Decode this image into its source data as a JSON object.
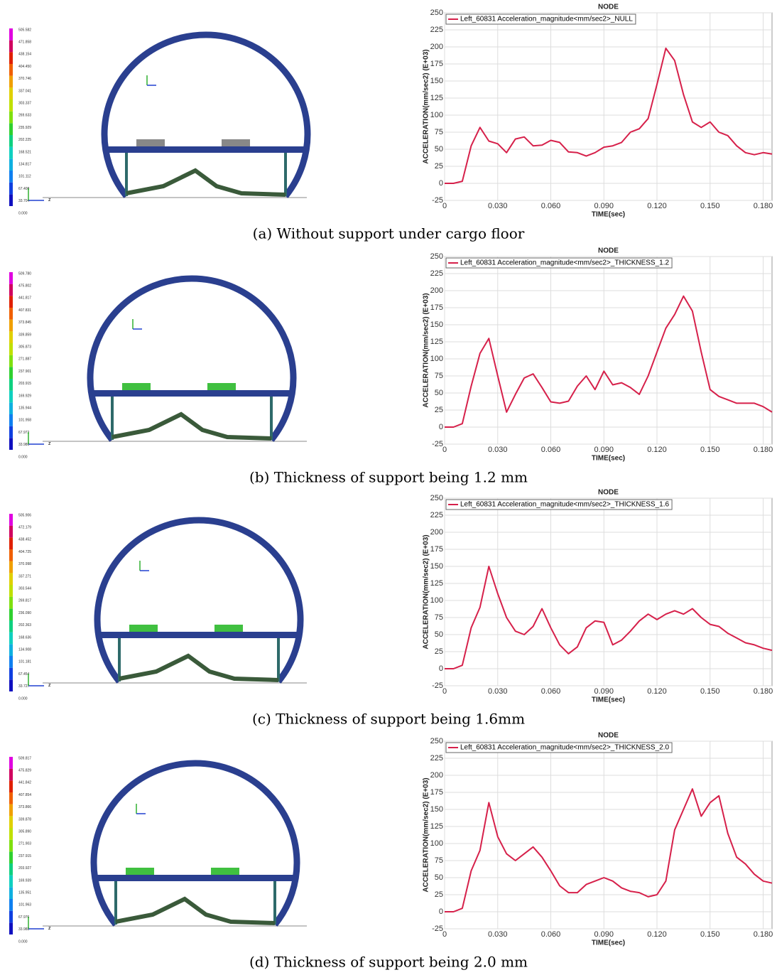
{
  "chart_data": [
    {
      "type": "line",
      "title": "NODE",
      "xlabel": "TIME(sec)",
      "ylabel": "ACCELERATION(mm/sec2) (E+03)",
      "x": [
        0,
        0.005,
        0.01,
        0.015,
        0.02,
        0.025,
        0.03,
        0.035,
        0.04,
        0.045,
        0.05,
        0.055,
        0.06,
        0.065,
        0.07,
        0.075,
        0.08,
        0.085,
        0.09,
        0.095,
        0.1,
        0.105,
        0.11,
        0.115,
        0.12,
        0.125,
        0.13,
        0.135,
        0.14,
        0.145,
        0.15,
        0.155,
        0.16,
        0.165,
        0.17,
        0.175,
        0.18,
        0.185
      ],
      "series": [
        {
          "name": "Left_60831 Acceleration_magnitude<mm/sec2>_NULL",
          "color": "#d6204a",
          "values": [
            0,
            0,
            3,
            55,
            82,
            62,
            58,
            45,
            65,
            68,
            55,
            56,
            63,
            60,
            46,
            45,
            40,
            45,
            53,
            55,
            60,
            75,
            80,
            95,
            145,
            198,
            180,
            130,
            90,
            82,
            90,
            75,
            70,
            55,
            45,
            42,
            45,
            43
          ]
        }
      ],
      "xlim": [
        0,
        0.185
      ],
      "ylim": [
        -25,
        250
      ],
      "xticks": [
        0,
        {
          "value": 0.03,
          "label": "0.030"
        },
        {
          "value": 0.06,
          "label": "0.060"
        },
        {
          "value": 0.09,
          "label": "0.090"
        },
        {
          "value": 0.12,
          "label": "0.120"
        },
        {
          "value": 0.15,
          "label": "0.150"
        },
        {
          "value": 0.18,
          "label": "0.180"
        }
      ],
      "yticks": [
        -25,
        0,
        25,
        50,
        75,
        100,
        125,
        150,
        175,
        200,
        225,
        250
      ],
      "grid": true
    },
    {
      "type": "line",
      "title": "NODE",
      "xlabel": "TIME(sec)",
      "ylabel": "ACCELERATION(mm/sec2) (E+03)",
      "x": [
        0,
        0.005,
        0.01,
        0.015,
        0.02,
        0.025,
        0.03,
        0.035,
        0.04,
        0.045,
        0.05,
        0.055,
        0.06,
        0.065,
        0.07,
        0.075,
        0.08,
        0.085,
        0.09,
        0.095,
        0.1,
        0.105,
        0.11,
        0.115,
        0.12,
        0.125,
        0.13,
        0.135,
        0.14,
        0.145,
        0.15,
        0.155,
        0.16,
        0.165,
        0.17,
        0.175,
        0.18,
        0.185
      ],
      "series": [
        {
          "name": "Left_60831 Acceleration_magnitude<mm/sec2>_THICKNESS_1.2",
          "color": "#d6204a",
          "values": [
            0,
            0,
            5,
            60,
            108,
            130,
            75,
            22,
            48,
            72,
            78,
            58,
            37,
            35,
            38,
            60,
            75,
            55,
            82,
            62,
            65,
            58,
            48,
            75,
            110,
            145,
            165,
            192,
            170,
            110,
            55,
            45,
            40,
            35,
            35,
            35,
            30,
            22
          ]
        }
      ],
      "xlim": [
        0,
        0.185
      ],
      "ylim": [
        -25,
        250
      ],
      "xticks": [
        0,
        {
          "value": 0.03,
          "label": "0.030"
        },
        {
          "value": 0.06,
          "label": "0.060"
        },
        {
          "value": 0.09,
          "label": "0.090"
        },
        {
          "value": 0.12,
          "label": "0.120"
        },
        {
          "value": 0.15,
          "label": "0.150"
        },
        {
          "value": 0.18,
          "label": "0.180"
        }
      ],
      "yticks": [
        -25,
        0,
        25,
        50,
        75,
        100,
        125,
        150,
        175,
        200,
        225,
        250
      ],
      "grid": true
    },
    {
      "type": "line",
      "title": "NODE",
      "xlabel": "TIME(sec)",
      "ylabel": "ACCELERATION(mm/sec2) (E+03)",
      "x": [
        0,
        0.005,
        0.01,
        0.015,
        0.02,
        0.025,
        0.03,
        0.035,
        0.04,
        0.045,
        0.05,
        0.055,
        0.06,
        0.065,
        0.07,
        0.075,
        0.08,
        0.085,
        0.09,
        0.095,
        0.1,
        0.105,
        0.11,
        0.115,
        0.12,
        0.125,
        0.13,
        0.135,
        0.14,
        0.145,
        0.15,
        0.155,
        0.16,
        0.165,
        0.17,
        0.175,
        0.18,
        0.185
      ],
      "series": [
        {
          "name": "Left_60831 Acceleration_magnitude<mm/sec2>_THICKNESS_1.6",
          "color": "#d6204a",
          "values": [
            0,
            0,
            5,
            60,
            90,
            150,
            110,
            75,
            55,
            50,
            62,
            88,
            60,
            35,
            22,
            32,
            60,
            70,
            68,
            35,
            42,
            55,
            70,
            80,
            72,
            80,
            85,
            80,
            88,
            75,
            65,
            62,
            52,
            45,
            38,
            35,
            30,
            27
          ]
        }
      ],
      "xlim": [
        0,
        0.185
      ],
      "ylim": [
        -25,
        250
      ],
      "xticks": [
        0,
        {
          "value": 0.03,
          "label": "0.030"
        },
        {
          "value": 0.06,
          "label": "0.060"
        },
        {
          "value": 0.09,
          "label": "0.090"
        },
        {
          "value": 0.12,
          "label": "0.120"
        },
        {
          "value": 0.15,
          "label": "0.150"
        },
        {
          "value": 0.18,
          "label": "0.180"
        }
      ],
      "yticks": [
        -25,
        0,
        25,
        50,
        75,
        100,
        125,
        150,
        175,
        200,
        225,
        250
      ],
      "grid": true
    },
    {
      "type": "line",
      "title": "NODE",
      "xlabel": "TIME(sec)",
      "ylabel": "ACCELERATION(mm/sec2) (E+03)",
      "x": [
        0,
        0.005,
        0.01,
        0.015,
        0.02,
        0.025,
        0.03,
        0.035,
        0.04,
        0.045,
        0.05,
        0.055,
        0.06,
        0.065,
        0.07,
        0.075,
        0.08,
        0.085,
        0.09,
        0.095,
        0.1,
        0.105,
        0.11,
        0.115,
        0.12,
        0.125,
        0.13,
        0.135,
        0.14,
        0.145,
        0.15,
        0.155,
        0.16,
        0.165,
        0.17,
        0.175,
        0.18,
        0.185
      ],
      "series": [
        {
          "name": "Left_60831 Acceleration_magnitude<mm/sec2>_THICKNESS_2.0",
          "color": "#d6204a",
          "values": [
            0,
            0,
            5,
            60,
            90,
            160,
            110,
            85,
            75,
            85,
            95,
            80,
            60,
            38,
            28,
            28,
            40,
            45,
            50,
            45,
            35,
            30,
            28,
            22,
            25,
            45,
            120,
            150,
            180,
            140,
            160,
            170,
            115,
            80,
            70,
            55,
            45,
            42
          ]
        }
      ],
      "xlim": [
        0,
        0.185
      ],
      "ylim": [
        -25,
        250
      ],
      "xticks": [
        0,
        {
          "value": 0.03,
          "label": "0.030"
        },
        {
          "value": 0.06,
          "label": "0.060"
        },
        {
          "value": 0.09,
          "label": "0.090"
        },
        {
          "value": 0.12,
          "label": "0.120"
        },
        {
          "value": 0.15,
          "label": "0.150"
        },
        {
          "value": 0.18,
          "label": "0.180"
        }
      ],
      "yticks": [
        -25,
        0,
        25,
        50,
        75,
        100,
        125,
        150,
        175,
        200,
        225,
        250
      ],
      "grid": true
    }
  ],
  "figures": [
    {
      "caption": "(a) Without support under cargo floor",
      "triad_label": "z",
      "colorbar": [
        "505.582",
        "471.858",
        "438.154",
        "404.450",
        "370.746",
        "337.041",
        "303.337",
        "269.633",
        "235.929",
        "202.225",
        "168.521",
        "134.817",
        "101.112",
        "67.408",
        "33.704",
        "0.000"
      ]
    },
    {
      "caption": "(b) Thickness of support being 1.2 mm",
      "triad_label": "z",
      "colorbar": [
        "509.780",
        "475.802",
        "441.817",
        "407.831",
        "373.845",
        "339.859",
        "305.873",
        "271.887",
        "237.901",
        "203.915",
        "169.929",
        "135.944",
        "101.958",
        "67.972",
        "33.986",
        "0.000"
      ]
    },
    {
      "caption": "(c) Thickness of support being 1.6mm",
      "triad_label": "z",
      "colorbar": [
        "505.906",
        "472.179",
        "438.452",
        "404.725",
        "370.998",
        "337.271",
        "303.544",
        "269.817",
        "236.090",
        "202.363",
        "168.636",
        "134.908",
        "101.181",
        "67.454",
        "33.727",
        "0.000"
      ]
    },
    {
      "caption": "(d) Thickness of support being 2.0 mm",
      "triad_label": "z",
      "colorbar": [
        "509.817",
        "475.829",
        "441.842",
        "407.854",
        "373.866",
        "339.878",
        "305.890",
        "271.903",
        "237.915",
        "203.927",
        "169.939",
        "135.951",
        "101.963",
        "67.976",
        "33.988",
        "0.000"
      ]
    }
  ]
}
